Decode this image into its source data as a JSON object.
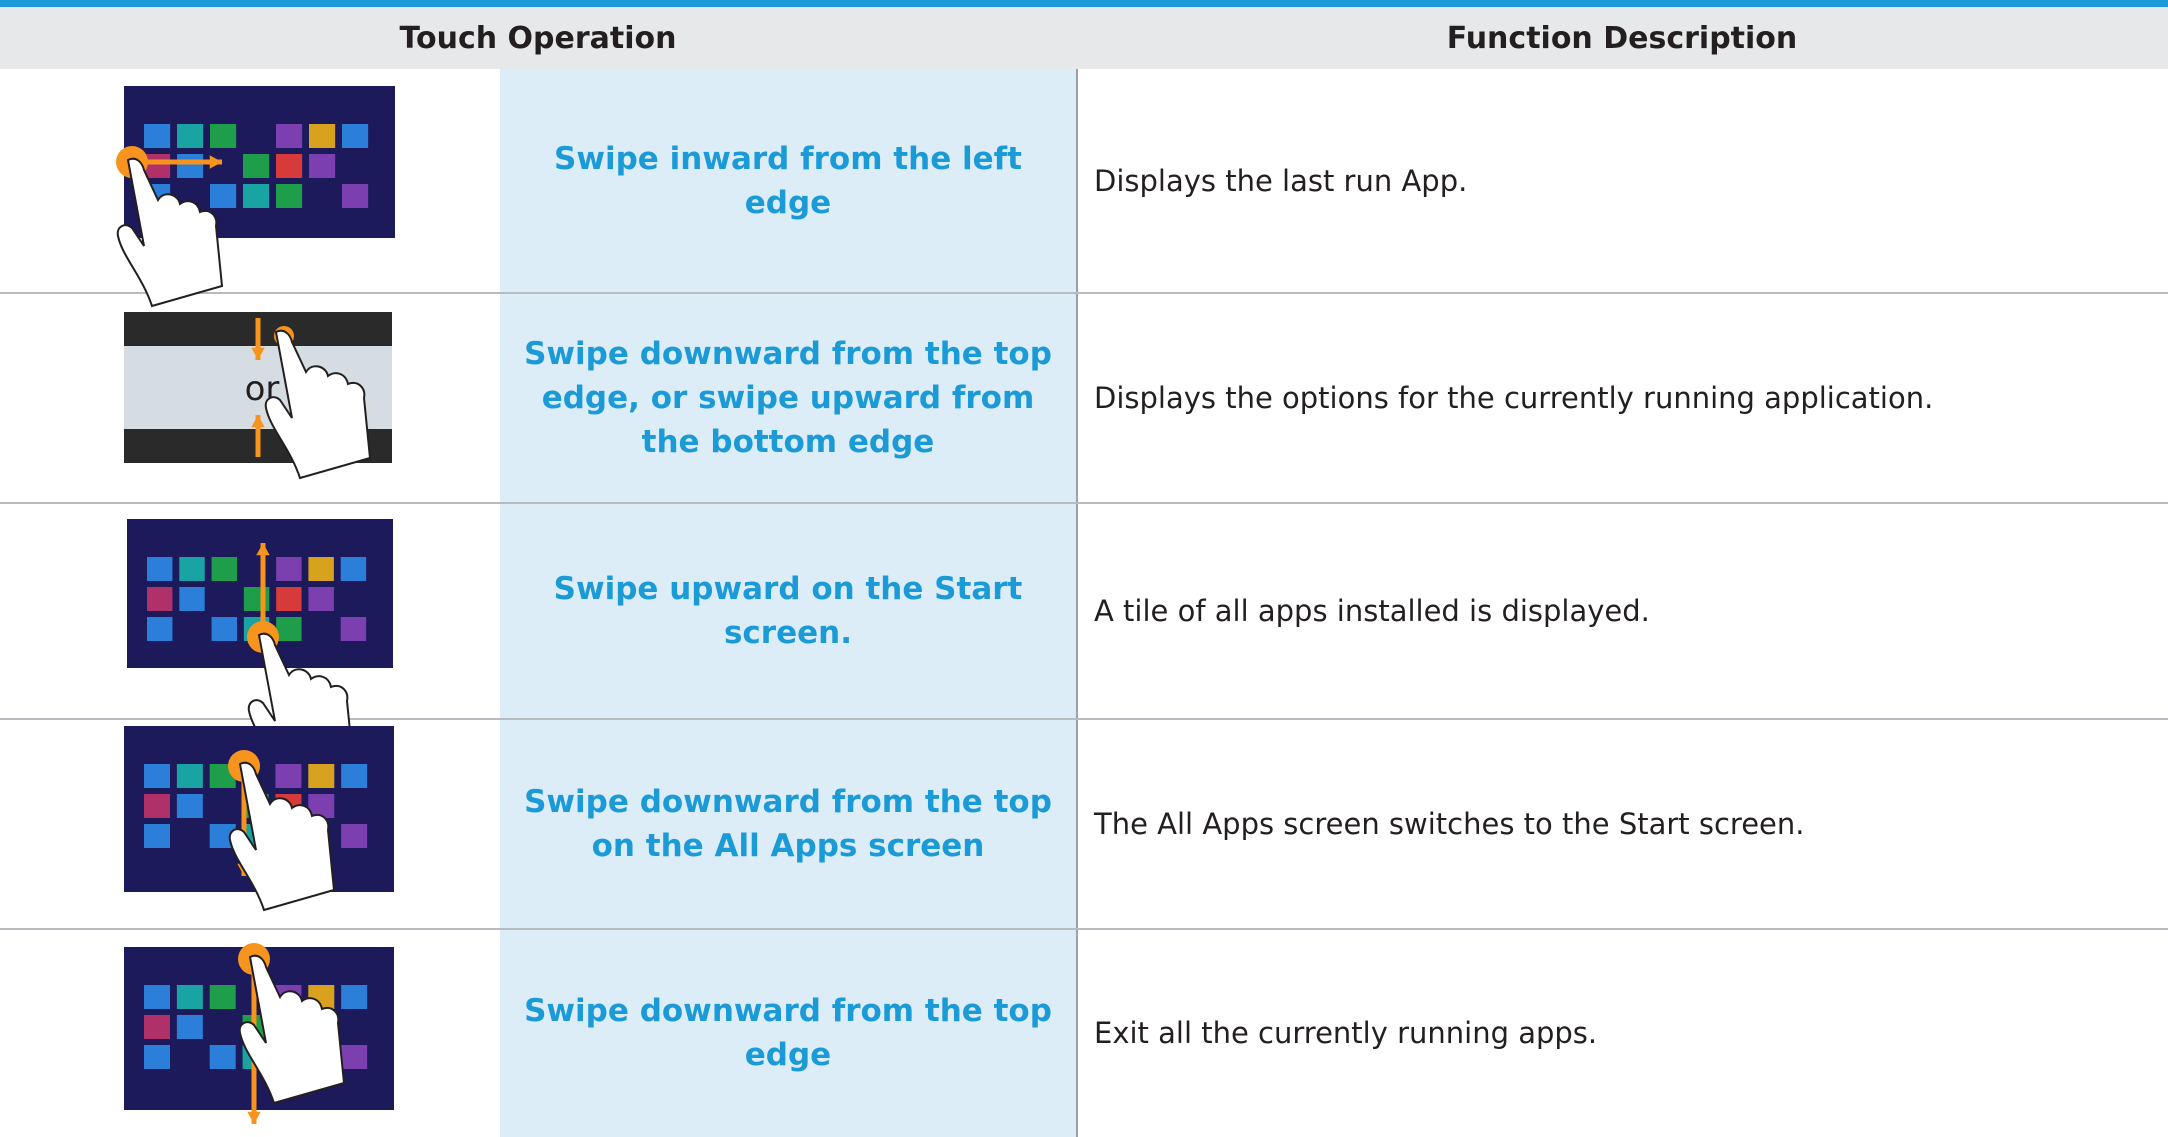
{
  "header": [
    "Touch Operation",
    "Function Description"
  ],
  "rows": [
    {
      "operation": "Swipe inward from the left edge",
      "description": "Displays the last run App."
    },
    {
      "operation": "Swipe downward from the top edge, or swipe upward from the bottom edge",
      "description": "Displays the options for the currently running application.",
      "image_text": "or"
    },
    {
      "operation": "Swipe upward on the Start screen.",
      "description": "A tile of all apps installed is displayed."
    },
    {
      "operation": "Swipe downward from the top on the All Apps screen",
      "description": "The All Apps screen switches to the Start screen."
    },
    {
      "operation": "Swipe downward from the top edge",
      "description": "Exit all the currently running apps."
    }
  ]
}
